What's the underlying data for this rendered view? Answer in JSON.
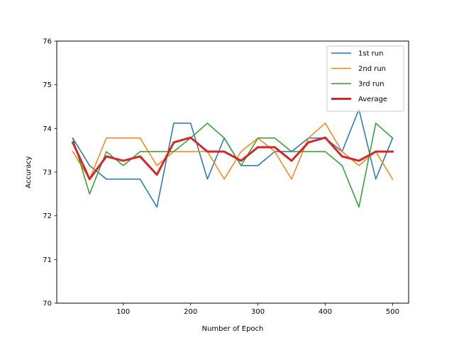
{
  "chart_data": {
    "type": "line",
    "title": "",
    "xlabel": "Number of Epoch",
    "ylabel": "Accuracy",
    "xlim": [
      1.25,
      523.75
    ],
    "ylim": [
      70,
      76
    ],
    "xticks": [
      100,
      200,
      300,
      400,
      500
    ],
    "yticks": [
      70,
      71,
      72,
      73,
      74,
      75,
      76
    ],
    "grid": false,
    "legend_position": "top-right",
    "x": [
      25,
      50,
      75,
      100,
      125,
      150,
      175,
      200,
      225,
      250,
      275,
      300,
      325,
      350,
      375,
      400,
      425,
      450,
      475,
      500
    ],
    "series": [
      {
        "name": "1st run",
        "color": "#1f77b4",
        "linewidth": 1.5,
        "values": [
          73.78,
          73.15,
          72.84,
          72.84,
          72.84,
          72.2,
          74.12,
          74.12,
          72.84,
          73.78,
          73.15,
          73.15,
          73.47,
          73.47,
          73.78,
          73.78,
          73.47,
          74.44,
          72.84,
          73.78
        ]
      },
      {
        "name": "2nd run",
        "color": "#ff7f0e",
        "linewidth": 1.5,
        "values": [
          73.47,
          72.84,
          73.78,
          73.78,
          73.78,
          73.15,
          73.47,
          73.47,
          73.47,
          72.84,
          73.47,
          73.78,
          73.47,
          72.84,
          73.78,
          74.12,
          73.47,
          73.15,
          73.47,
          72.84
        ]
      },
      {
        "name": "3rd run",
        "color": "#2ca02c",
        "linewidth": 1.5,
        "values": [
          73.78,
          72.5,
          73.47,
          73.15,
          73.47,
          73.47,
          73.47,
          73.78,
          74.12,
          73.78,
          73.15,
          73.78,
          73.78,
          73.47,
          73.47,
          73.47,
          73.15,
          72.2,
          74.12,
          73.78
        ]
      },
      {
        "name": "Average",
        "color": "#d62728",
        "linewidth": 3,
        "values": [
          73.68,
          72.84,
          73.36,
          73.26,
          73.36,
          72.94,
          73.68,
          73.79,
          73.47,
          73.47,
          73.26,
          73.57,
          73.57,
          73.26,
          73.68,
          73.79,
          73.36,
          73.26,
          73.47,
          73.47
        ]
      }
    ]
  }
}
